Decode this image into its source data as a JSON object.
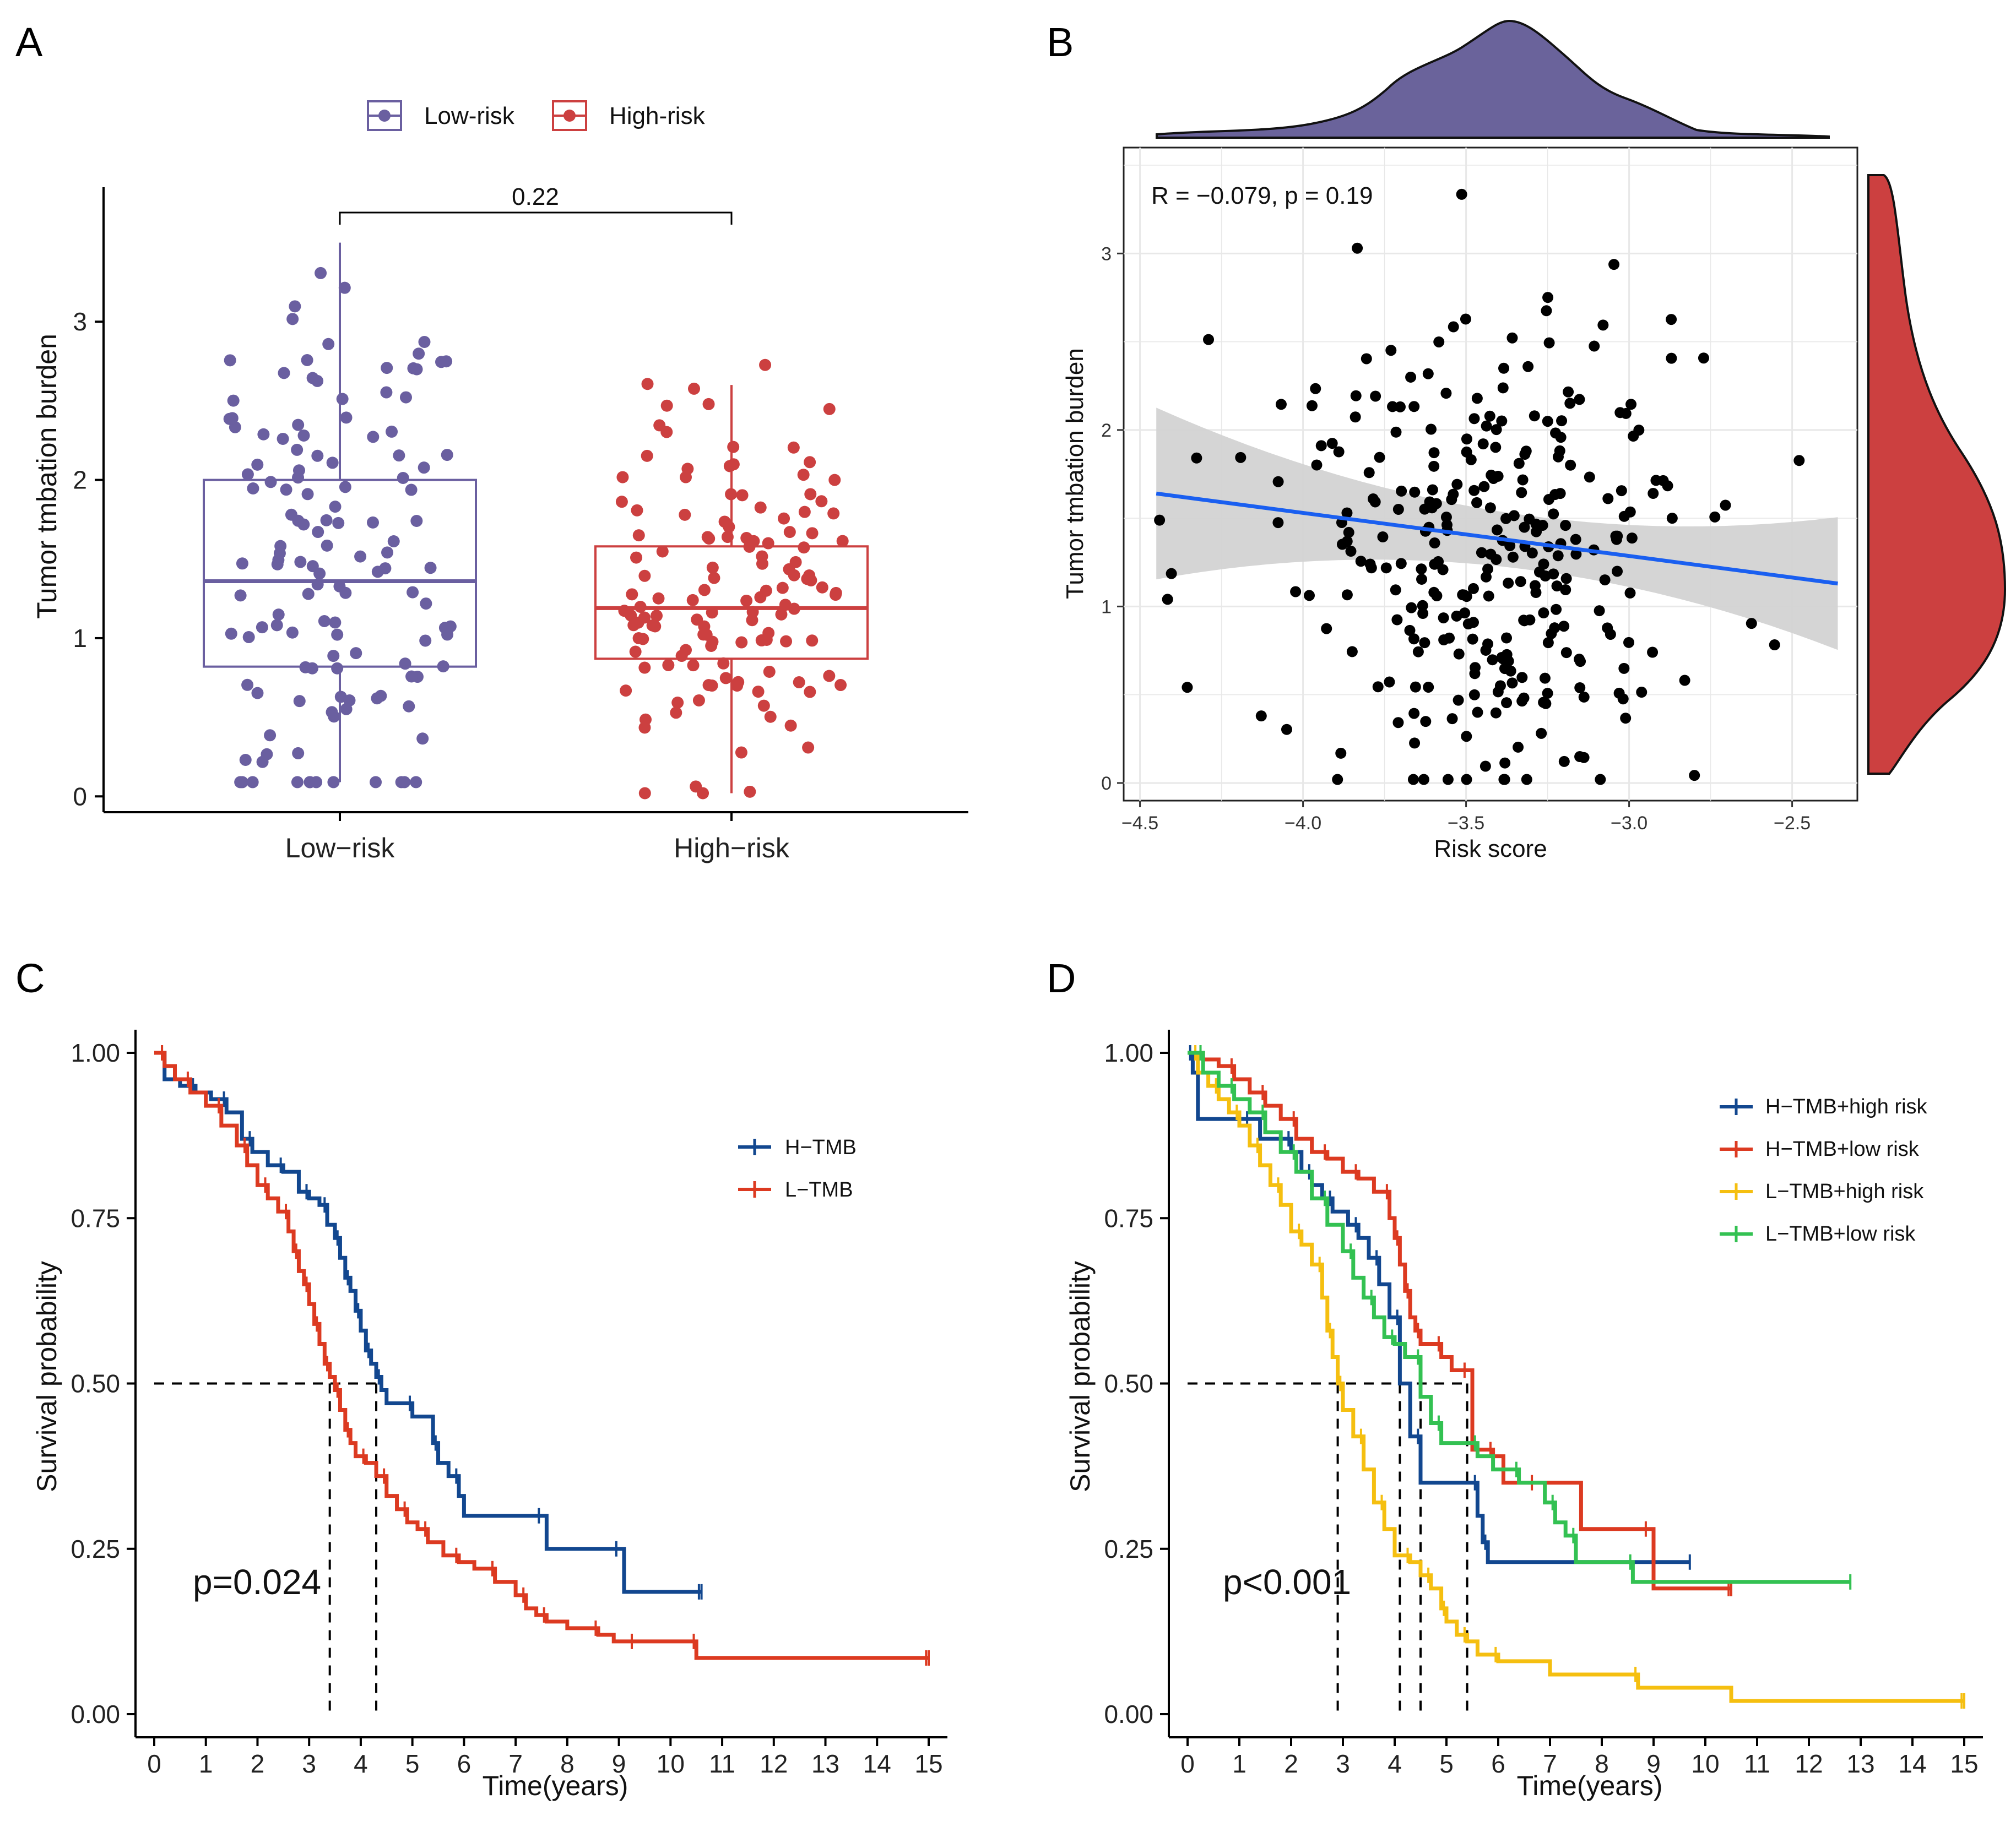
{
  "panels": {
    "A": {
      "label": "A",
      "legend": [
        "Low-risk",
        "High-risk"
      ],
      "ylabel": "Tumor tmbation burden",
      "pvalue": "0.22"
    },
    "B": {
      "label": "B",
      "ylabel": "Tumor tmbation burden",
      "xlabel": "Risk score",
      "annotation": "R = −0.079, p = 0.19"
    },
    "C": {
      "label": "C",
      "ylabel": "Survival probability",
      "xlabel": "Time(years)",
      "pvalue": "p=0.024",
      "legend": [
        "H−TMB",
        "L−TMB"
      ]
    },
    "D": {
      "label": "D",
      "ylabel": "Survival probability",
      "xlabel": "Time(years)",
      "pvalue": "p<0.001",
      "legend": [
        "H−TMB+high risk",
        "H−TMB+low risk",
        "L−TMB+high risk",
        "L−TMB+low risk"
      ]
    }
  },
  "colors": {
    "lowrisk": "#6a5fa0",
    "highrisk": "#cc4040",
    "htmb": "#12478f",
    "ltmb": "#dc3a21",
    "lhr": "#f5bf10",
    "llr": "#33c152",
    "regline": "#1a5ff0"
  },
  "chart_data": [
    {
      "type": "box",
      "title": "",
      "categories": [
        "Low−risk",
        "High−risk"
      ],
      "ylabel": "Tumor tmbation burden",
      "ylim": [
        -0.1,
        3.85
      ],
      "yticks": [
        0,
        1,
        2,
        3
      ],
      "boxes": [
        {
          "name": "Low-risk",
          "q1": 0.82,
          "median": 1.36,
          "q3": 2.0,
          "whisker_low": 0.09,
          "whisker_high": 3.5
        },
        {
          "name": "High-risk",
          "q1": 0.87,
          "median": 1.19,
          "q3": 1.58,
          "whisker_low": 0.02,
          "whisker_high": 2.6
        }
      ],
      "comparison_p": "0.22"
    },
    {
      "type": "scatter",
      "title": "",
      "xlabel": "Risk score",
      "ylabel": "Tumor tmbation burden",
      "xlim": [
        -4.55,
        -2.3
      ],
      "ylim": [
        -0.1,
        3.6
      ],
      "xticks": [
        -4.5,
        -4.0,
        -3.5,
        -3.0,
        -2.5
      ],
      "xtick_labels": [
        "−4.5",
        "−4.0",
        "−3.5",
        "−3.0",
        "−2.5"
      ],
      "yticks": [
        0,
        1,
        2,
        3
      ],
      "regression": {
        "x": [
          -4.45,
          -2.36
        ],
        "y": [
          1.64,
          1.13
        ],
        "ci_lower": [
          1.32,
          0.77
        ],
        "ci_upper": [
          1.96,
          1.49
        ]
      },
      "R": -0.079,
      "p": 0.19
    },
    {
      "type": "line",
      "title": "",
      "xlabel": "Time(years)",
      "ylabel": "Survival probability",
      "xlim": [
        0,
        15
      ],
      "ylim": [
        0,
        1
      ],
      "xticks": [
        0,
        1,
        2,
        3,
        4,
        5,
        6,
        7,
        8,
        9,
        10,
        11,
        12,
        13,
        14,
        15
      ],
      "yticks": [
        0,
        0.25,
        0.5,
        0.75,
        1.0
      ],
      "ytick_labels": [
        "0.00",
        "0.25",
        "0.50",
        "0.75",
        "1.00"
      ],
      "median_survival": [
        3.4,
        4.3
      ],
      "series": [
        {
          "name": "H−TMB",
          "x": [
            0,
            0.2,
            0.5,
            0.8,
            1.1,
            1.4,
            1.7,
            1.9,
            2.2,
            2.5,
            2.8,
            3.0,
            3.2,
            3.35,
            3.5,
            3.6,
            3.7,
            3.8,
            3.9,
            4.0,
            4.1,
            4.2,
            4.3,
            4.4,
            4.5,
            5.0,
            5.4,
            5.5,
            5.7,
            5.9,
            6.0,
            7.5,
            7.6,
            9.0,
            9.1,
            10.6
          ],
          "y": [
            1.0,
            0.96,
            0.95,
            0.94,
            0.93,
            0.91,
            0.87,
            0.85,
            0.83,
            0.82,
            0.79,
            0.78,
            0.77,
            0.74,
            0.72,
            0.69,
            0.66,
            0.64,
            0.61,
            0.58,
            0.55,
            0.53,
            0.51,
            0.49,
            0.47,
            0.45,
            0.41,
            0.38,
            0.36,
            0.33,
            0.3,
            0.3,
            0.25,
            0.25,
            0.185,
            0.185
          ]
        },
        {
          "name": "L−TMB",
          "x": [
            0,
            0.2,
            0.4,
            0.7,
            1.0,
            1.3,
            1.6,
            1.8,
            2.0,
            2.2,
            2.4,
            2.6,
            2.7,
            2.8,
            2.9,
            3.0,
            3.1,
            3.2,
            3.3,
            3.4,
            3.5,
            3.6,
            3.7,
            3.8,
            3.9,
            4.1,
            4.3,
            4.5,
            4.7,
            4.9,
            5.1,
            5.3,
            5.6,
            5.9,
            6.2,
            6.6,
            7.0,
            7.2,
            7.4,
            7.6,
            8.0,
            8.6,
            8.9,
            9.3,
            10.4,
            10.5,
            10.6,
            15.0
          ],
          "y": [
            1.0,
            0.98,
            0.96,
            0.94,
            0.92,
            0.89,
            0.86,
            0.83,
            0.8,
            0.78,
            0.76,
            0.73,
            0.7,
            0.67,
            0.65,
            0.62,
            0.59,
            0.56,
            0.53,
            0.51,
            0.49,
            0.46,
            0.43,
            0.41,
            0.39,
            0.38,
            0.36,
            0.33,
            0.31,
            0.29,
            0.28,
            0.26,
            0.24,
            0.23,
            0.22,
            0.2,
            0.18,
            0.16,
            0.15,
            0.14,
            0.13,
            0.12,
            0.11,
            0.11,
            0.11,
            0.085,
            0.085,
            0.085
          ]
        }
      ]
    },
    {
      "type": "line",
      "title": "",
      "xlabel": "Time(years)",
      "ylabel": "Survival probability",
      "xlim": [
        0,
        15
      ],
      "ylim": [
        0,
        1
      ],
      "xticks": [
        0,
        1,
        2,
        3,
        4,
        5,
        6,
        7,
        8,
        9,
        10,
        11,
        12,
        13,
        14,
        15
      ],
      "yticks": [
        0,
        0.25,
        0.5,
        0.75,
        1.0
      ],
      "ytick_labels": [
        "0.00",
        "0.25",
        "0.50",
        "0.75",
        "1.00"
      ],
      "median_survival": [
        2.9,
        4.1,
        4.5,
        5.4
      ],
      "series": [
        {
          "name": "H−TMB+high risk",
          "x": [
            0,
            0.1,
            0.2,
            1.2,
            1.4,
            2.0,
            2.2,
            2.4,
            2.6,
            2.8,
            3.1,
            3.3,
            3.5,
            3.7,
            3.9,
            4.1,
            4.3,
            4.5,
            5.5,
            5.6,
            5.7,
            5.8,
            9.7
          ],
          "y": [
            1.0,
            0.97,
            0.9,
            0.9,
            0.87,
            0.85,
            0.82,
            0.8,
            0.78,
            0.76,
            0.74,
            0.72,
            0.69,
            0.65,
            0.6,
            0.5,
            0.42,
            0.35,
            0.35,
            0.3,
            0.26,
            0.23,
            0.23
          ]
        },
        {
          "name": "H−TMB+low risk",
          "x": [
            0,
            0.3,
            0.6,
            0.9,
            1.2,
            1.5,
            1.8,
            2.1,
            2.4,
            2.7,
            3.0,
            3.3,
            3.6,
            3.9,
            4.0,
            4.1,
            4.2,
            4.3,
            4.4,
            4.5,
            4.7,
            4.9,
            5.1,
            5.4,
            5.5,
            5.9,
            6.1,
            6.7,
            7.6,
            8.9,
            9.0,
            10.5
          ],
          "y": [
            1.0,
            0.99,
            0.98,
            0.96,
            0.94,
            0.92,
            0.9,
            0.87,
            0.85,
            0.84,
            0.82,
            0.81,
            0.79,
            0.75,
            0.72,
            0.68,
            0.64,
            0.6,
            0.58,
            0.56,
            0.56,
            0.54,
            0.52,
            0.52,
            0.4,
            0.39,
            0.35,
            0.35,
            0.28,
            0.28,
            0.19,
            0.19
          ]
        },
        {
          "name": "L−TMB+high risk",
          "x": [
            0,
            0.2,
            0.4,
            0.6,
            0.8,
            1.0,
            1.2,
            1.4,
            1.6,
            1.8,
            2.0,
            2.2,
            2.4,
            2.6,
            2.7,
            2.8,
            2.9,
            3.0,
            3.2,
            3.4,
            3.6,
            3.8,
            4.0,
            4.3,
            4.5,
            4.7,
            4.9,
            5.0,
            5.2,
            5.4,
            5.6,
            6.0,
            7.0,
            8.7,
            10.5,
            15.0
          ],
          "y": [
            1.0,
            0.97,
            0.95,
            0.93,
            0.91,
            0.89,
            0.86,
            0.83,
            0.8,
            0.77,
            0.73,
            0.71,
            0.68,
            0.63,
            0.58,
            0.54,
            0.5,
            0.46,
            0.42,
            0.37,
            0.32,
            0.28,
            0.24,
            0.23,
            0.21,
            0.19,
            0.16,
            0.14,
            0.12,
            0.11,
            0.09,
            0.08,
            0.06,
            0.04,
            0.02,
            0.02
          ]
        },
        {
          "name": "L−TMB+low risk",
          "x": [
            0,
            0.3,
            0.6,
            0.9,
            1.2,
            1.5,
            1.8,
            2.1,
            2.4,
            2.7,
            3.0,
            3.2,
            3.4,
            3.6,
            3.8,
            4.0,
            4.2,
            4.5,
            4.7,
            4.9,
            5.3,
            5.6,
            5.9,
            6.4,
            6.9,
            7.1,
            7.3,
            7.5,
            8.5,
            8.6,
            12.8
          ],
          "y": [
            1.0,
            0.97,
            0.95,
            0.93,
            0.91,
            0.88,
            0.85,
            0.82,
            0.78,
            0.74,
            0.7,
            0.66,
            0.63,
            0.6,
            0.57,
            0.56,
            0.54,
            0.48,
            0.44,
            0.41,
            0.41,
            0.39,
            0.37,
            0.35,
            0.32,
            0.29,
            0.27,
            0.23,
            0.23,
            0.2,
            0.2
          ]
        }
      ]
    }
  ]
}
